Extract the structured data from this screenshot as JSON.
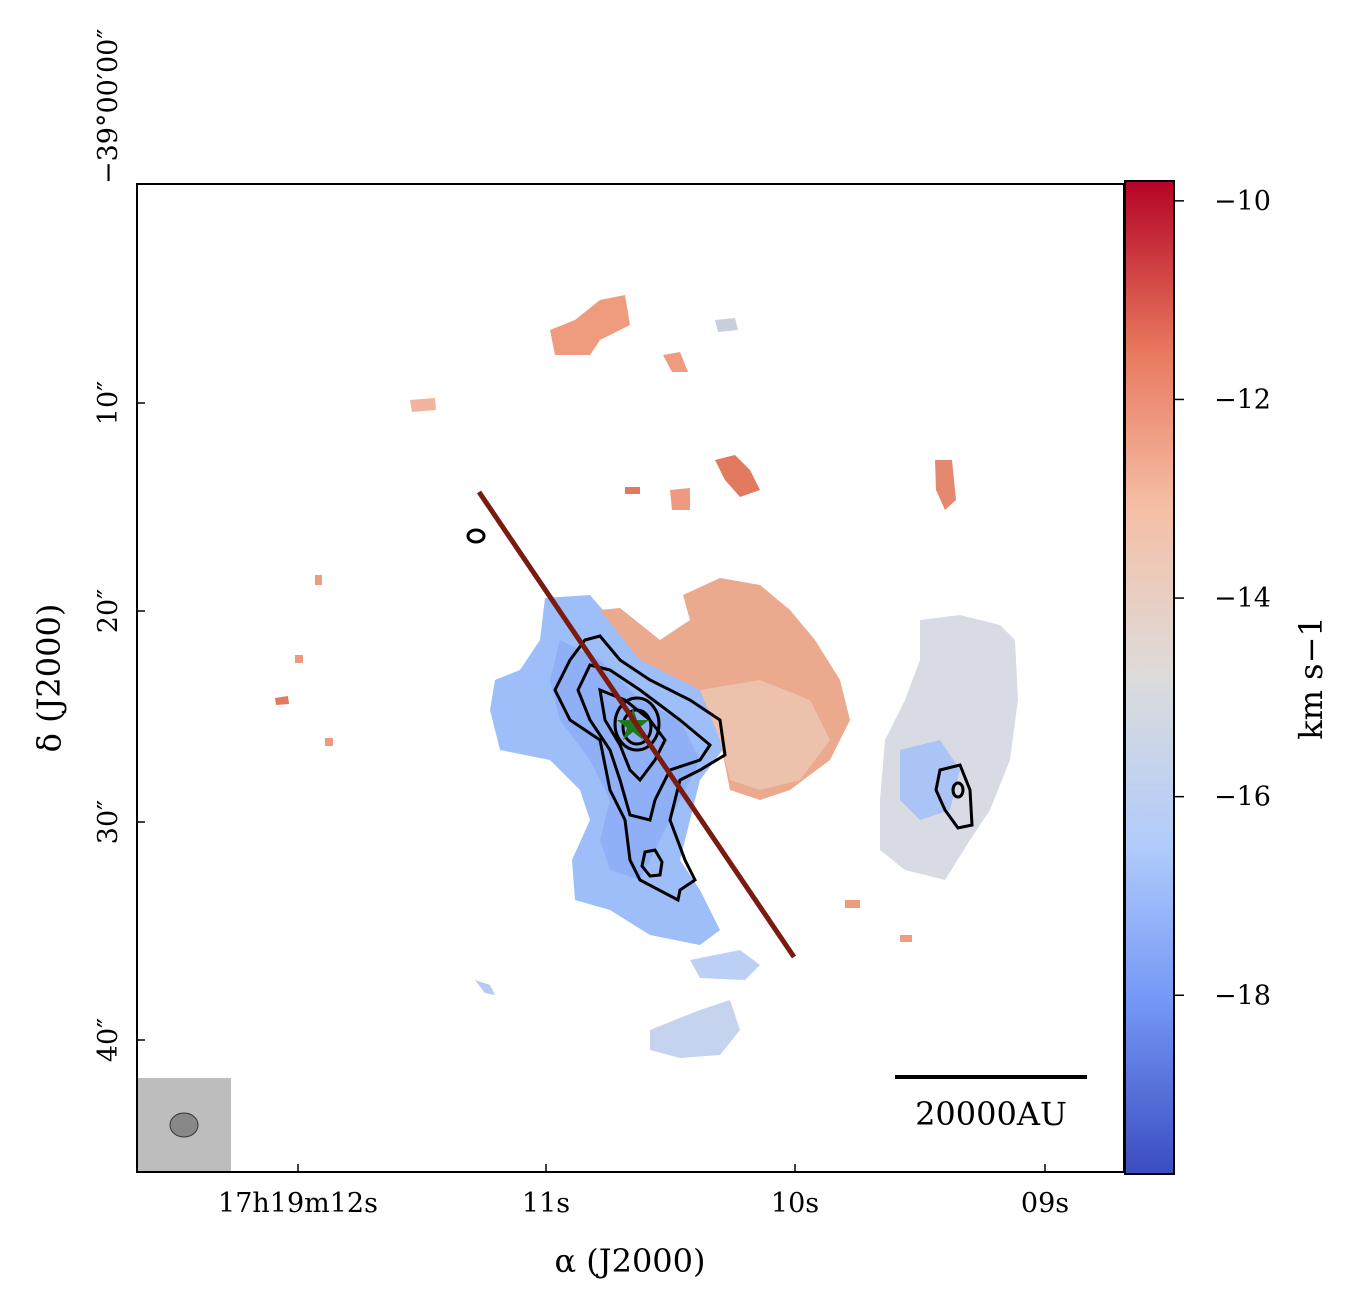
{
  "chart_data": {
    "type": "heatmap",
    "x_axis": {
      "title": "α (J2000)",
      "ticks": [
        "17h19m12s",
        "11s",
        "10s",
        "09s"
      ]
    },
    "y_axis": {
      "title": "δ (J2000)",
      "ticks": [
        "−39°00′00″",
        "10″",
        "20″",
        "30″",
        "40″"
      ]
    },
    "colorbar": {
      "label": "km s−1",
      "range": [
        -19.8,
        -9.8
      ],
      "ticks": [
        -10,
        -12,
        -14,
        -16,
        -18
      ],
      "tick_labels": [
        "−10",
        "−12",
        "−14",
        "−16",
        "−18"
      ],
      "colormap": "coolwarm",
      "colors": [
        "#3b4cc0",
        "#7396f5",
        "#b0cbfc",
        "#dddcdc",
        "#f6bfa6",
        "#e8785d",
        "#b40426"
      ]
    },
    "scale_bar": {
      "label": "20000AU"
    },
    "overlays": {
      "line_color": "#7a1a10",
      "source_marker": "green-star",
      "contour_color": "#000000",
      "beam_color": "#888888"
    }
  }
}
